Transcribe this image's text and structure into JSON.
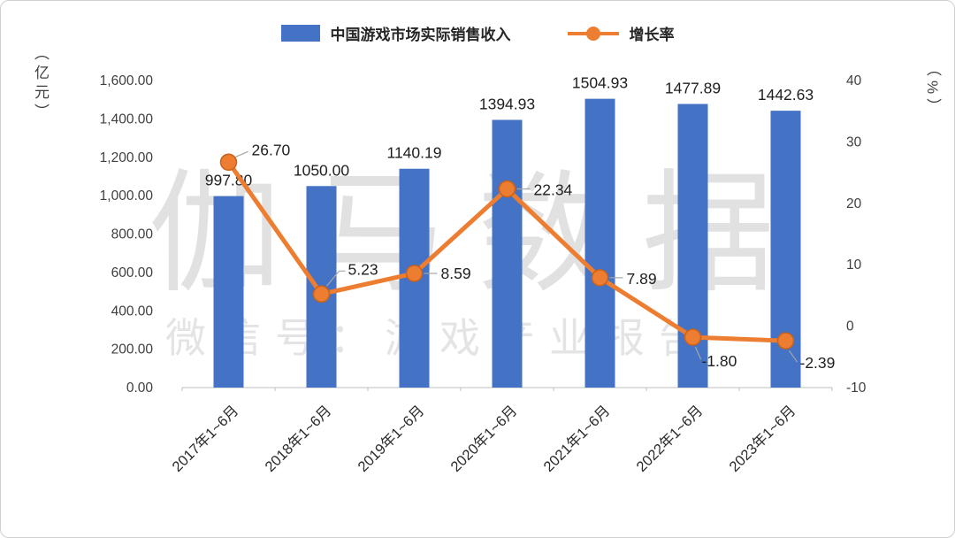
{
  "legend": {
    "revenue_label": "中国游戏市场实际销售收入",
    "growth_label": "增长率"
  },
  "watermark": {
    "line1": "伽马数据",
    "line2": "微信号：游戏产业报告"
  },
  "chart_data": {
    "type": "bar",
    "subtype": "bar-line-combo",
    "categories": [
      "2017年1~6月",
      "2018年1~6月",
      "2019年1~6月",
      "2020年1~6月",
      "2021年1~6月",
      "2022年1~6月",
      "2023年1~6月"
    ],
    "series": [
      {
        "name": "中国游戏市场实际销售收入",
        "type": "bar",
        "axis": "left",
        "color": "#4472C4",
        "values": [
          997.8,
          1050.0,
          1140.19,
          1394.93,
          1504.93,
          1477.89,
          1442.63
        ]
      },
      {
        "name": "增长率",
        "type": "line",
        "axis": "right",
        "color": "#ED7D31",
        "values": [
          26.7,
          5.23,
          8.59,
          22.34,
          7.89,
          -1.8,
          -2.39
        ]
      }
    ],
    "value_labels": [
      "997.80",
      "1050.00",
      "1140.19",
      "1394.93",
      "1504.93",
      "1477.89",
      "1442.63"
    ],
    "growth_labels": [
      "26.70",
      "5.23",
      "8.59",
      "22.34",
      "7.89",
      "-1.80",
      "-2.39"
    ],
    "left_axis": {
      "unit": "（亿元）",
      "min": 0,
      "max": 1600,
      "ticks": [
        "0.00",
        "200.00",
        "400.00",
        "600.00",
        "800.00",
        "1,000.00",
        "1,200.00",
        "1,400.00",
        "1,600.00"
      ]
    },
    "right_axis": {
      "unit": "（%）",
      "min": -10,
      "max": 40,
      "ticks": [
        "-10",
        "0",
        "10",
        "20",
        "30",
        "40"
      ]
    },
    "grid": false,
    "legend_position": "top-center",
    "layout": {
      "growth_label_offsets": [
        {
          "label": [
            26,
            -8
          ],
          "leader": [
            [
              8,
              -6
            ],
            [
              22,
              -12
            ]
          ]
        },
        {
          "label": [
            30,
            -22
          ],
          "leader": [
            [
              6,
              -9
            ],
            [
              20,
              -26
            ],
            [
              27,
              -26
            ]
          ]
        },
        {
          "label": [
            30,
            6
          ],
          "leader": [
            [
              11,
              0
            ],
            [
              26,
              0
            ]
          ]
        },
        {
          "label": [
            30,
            7
          ],
          "leader": [
            [
              11,
              0
            ],
            [
              26,
              0
            ]
          ]
        },
        {
          "label": [
            30,
            7
          ],
          "leader": [
            [
              11,
              0
            ],
            [
              26,
              0
            ]
          ]
        },
        {
          "label": [
            10,
            33
          ],
          "leader": [
            [
              3,
              11
            ],
            [
              9,
              25
            ]
          ]
        },
        {
          "label": [
            16,
            31
          ],
          "leader": [
            [
              4,
              11
            ],
            [
              13,
              24
            ]
          ]
        }
      ]
    }
  }
}
